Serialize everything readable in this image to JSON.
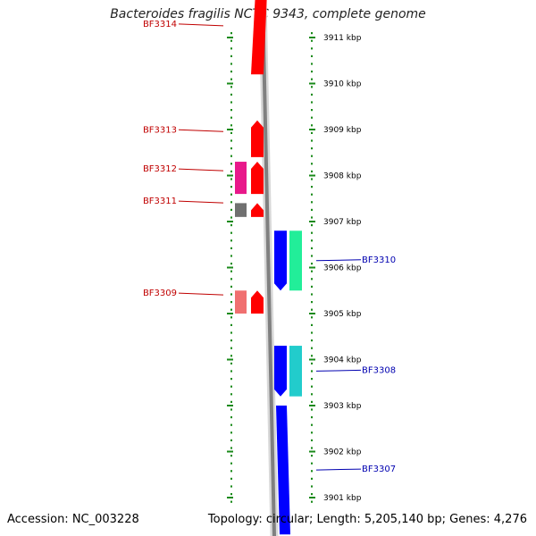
{
  "title": "Bacteroides fragilis NCTC 9343, complete genome",
  "accession": "Accession: NC_003228",
  "topology": "Topology: circular; Length: 5,205,140 bp; Genes: 4,276",
  "colors": {
    "scale_ticks": "#1a8a1a",
    "backbone": "#808080",
    "left_label": "#c00000",
    "right_label": "#0000b0",
    "strand_minus": "#ff0000",
    "strand_plus": "#0000ff"
  },
  "kbp_scale": [
    {
      "label": "3911 kbp",
      "kbp": 3911
    },
    {
      "label": "3910 kbp",
      "kbp": 3910
    },
    {
      "label": "3909 kbp",
      "kbp": 3909
    },
    {
      "label": "3908 kbp",
      "kbp": 3908
    },
    {
      "label": "3907 kbp",
      "kbp": 3907
    },
    {
      "label": "3906 kbp",
      "kbp": 3906
    },
    {
      "label": "3905 kbp",
      "kbp": 3905
    },
    {
      "label": "3904 kbp",
      "kbp": 3904
    },
    {
      "label": "3903 kbp",
      "kbp": 3903
    },
    {
      "label": "3902 kbp",
      "kbp": 3902
    },
    {
      "label": "3901 kbp",
      "kbp": 3901
    }
  ],
  "genes": [
    {
      "label": "BF3314",
      "side": "left",
      "start_kbp": 3910.2,
      "end_kbp": 3912.0,
      "color": "#ff0000",
      "arrow": false,
      "side_block": null
    },
    {
      "label": "BF3313",
      "side": "left",
      "start_kbp": 3908.4,
      "end_kbp": 3909.2,
      "color": "#ff0000",
      "arrow": true,
      "side_block": null
    },
    {
      "label": "BF3312",
      "side": "left",
      "start_kbp": 3907.6,
      "end_kbp": 3908.3,
      "color": "#ff0000",
      "arrow": true,
      "side_block": "#e8198a"
    },
    {
      "label": "BF3311",
      "side": "left",
      "start_kbp": 3907.1,
      "end_kbp": 3907.4,
      "color": "#ff0000",
      "arrow": true,
      "side_block": "#707070"
    },
    {
      "label": "BF3309",
      "side": "left",
      "start_kbp": 3905.0,
      "end_kbp": 3905.5,
      "color": "#ff0000",
      "arrow": true,
      "side_block": "#f07070"
    },
    {
      "label": "BF3310",
      "side": "right",
      "start_kbp": 3905.5,
      "end_kbp": 3906.8,
      "color": "#0000ff",
      "arrow": true,
      "side_block": "#22ee99"
    },
    {
      "label": "BF3308",
      "side": "right",
      "start_kbp": 3903.2,
      "end_kbp": 3904.3,
      "color": "#0000ff",
      "arrow": true,
      "side_block": "#22cccc"
    },
    {
      "label": "BF3307",
      "side": "right",
      "start_kbp": 3900.2,
      "end_kbp": 3903.0,
      "color": "#0000ff",
      "arrow": false,
      "side_block": null
    }
  ]
}
